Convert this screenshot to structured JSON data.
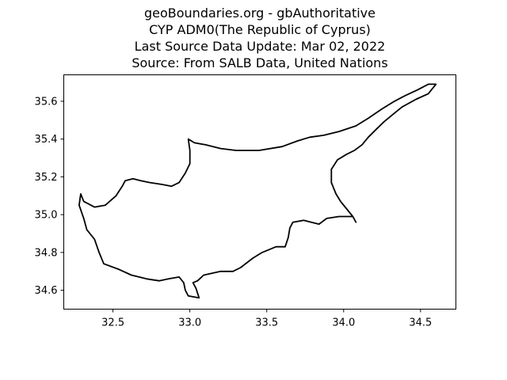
{
  "title": {
    "line1": "geoBoundaries.org - gbAuthoritative",
    "line2": "CYP ADM0(The Republic of Cyprus)",
    "line3": "Last Source Data Update: Mar 02, 2022",
    "line4": "Source: From SALB Data, United Nations"
  },
  "chart_data": {
    "type": "map",
    "xlim": [
      32.18,
      34.73
    ],
    "ylim": [
      34.5,
      35.74
    ],
    "xticks": [
      32.5,
      33.0,
      33.5,
      34.0,
      34.5
    ],
    "xtick_labels": [
      "32.5",
      "33.0",
      "33.5",
      "34.0",
      "34.5"
    ],
    "yticks": [
      34.6,
      34.8,
      35.0,
      35.2,
      35.4,
      35.6
    ],
    "ytick_labels": [
      "34.6",
      "34.8",
      "35.0",
      "35.2",
      "35.4",
      "35.6"
    ],
    "grid": false,
    "outline_color": "#000000",
    "boundary": [
      [
        32.99,
        34.57
      ],
      [
        33.06,
        34.56
      ],
      [
        33.04,
        34.61
      ],
      [
        33.02,
        34.64
      ],
      [
        33.05,
        34.65
      ],
      [
        33.09,
        34.68
      ],
      [
        33.2,
        34.7
      ],
      [
        33.28,
        34.7
      ],
      [
        33.33,
        34.72
      ],
      [
        33.41,
        34.77
      ],
      [
        33.47,
        34.8
      ],
      [
        33.56,
        34.83
      ],
      [
        33.62,
        34.83
      ],
      [
        33.64,
        34.88
      ],
      [
        33.65,
        34.93
      ],
      [
        33.67,
        34.96
      ],
      [
        33.74,
        34.97
      ],
      [
        33.79,
        34.96
      ],
      [
        33.84,
        34.95
      ],
      [
        33.89,
        34.98
      ],
      [
        33.97,
        34.99
      ],
      [
        34.06,
        34.99
      ],
      [
        34.08,
        34.96
      ],
      [
        34.06,
        34.99
      ],
      [
        34.02,
        35.03
      ],
      [
        33.98,
        35.07
      ],
      [
        33.95,
        35.11
      ],
      [
        33.92,
        35.17
      ],
      [
        33.92,
        35.24
      ],
      [
        33.96,
        35.29
      ],
      [
        34.02,
        35.32
      ],
      [
        34.07,
        35.34
      ],
      [
        34.12,
        35.37
      ],
      [
        34.16,
        35.41
      ],
      [
        34.21,
        35.45
      ],
      [
        34.26,
        35.49
      ],
      [
        34.32,
        35.53
      ],
      [
        34.38,
        35.57
      ],
      [
        34.47,
        35.61
      ],
      [
        34.55,
        35.64
      ],
      [
        34.6,
        35.69
      ],
      [
        34.55,
        35.69
      ],
      [
        34.48,
        35.66
      ],
      [
        34.4,
        35.63
      ],
      [
        34.33,
        35.6
      ],
      [
        34.25,
        35.56
      ],
      [
        34.16,
        35.51
      ],
      [
        34.08,
        35.47
      ],
      [
        33.97,
        35.44
      ],
      [
        33.87,
        35.42
      ],
      [
        33.78,
        35.41
      ],
      [
        33.7,
        35.39
      ],
      [
        33.6,
        35.36
      ],
      [
        33.45,
        35.34
      ],
      [
        33.3,
        35.34
      ],
      [
        33.2,
        35.35
      ],
      [
        33.1,
        35.37
      ],
      [
        33.03,
        35.38
      ],
      [
        32.99,
        35.4
      ],
      [
        33.0,
        35.34
      ],
      [
        33.0,
        35.27
      ],
      [
        32.97,
        35.22
      ],
      [
        32.93,
        35.17
      ],
      [
        32.88,
        35.15
      ],
      [
        32.82,
        35.16
      ],
      [
        32.74,
        35.17
      ],
      [
        32.68,
        35.18
      ],
      [
        32.63,
        35.19
      ],
      [
        32.58,
        35.18
      ],
      [
        32.56,
        35.15
      ],
      [
        32.52,
        35.1
      ],
      [
        32.45,
        35.05
      ],
      [
        32.38,
        35.04
      ],
      [
        32.31,
        35.07
      ],
      [
        32.29,
        35.11
      ],
      [
        32.28,
        35.05
      ],
      [
        32.31,
        34.98
      ],
      [
        32.33,
        34.92
      ],
      [
        32.38,
        34.87
      ],
      [
        32.41,
        34.8
      ],
      [
        32.44,
        34.74
      ],
      [
        32.54,
        34.71
      ],
      [
        32.62,
        34.68
      ],
      [
        32.72,
        34.66
      ],
      [
        32.8,
        34.65
      ],
      [
        32.86,
        34.66
      ],
      [
        32.93,
        34.67
      ],
      [
        32.96,
        34.64
      ],
      [
        32.97,
        34.6
      ],
      [
        32.99,
        34.57
      ]
    ]
  }
}
